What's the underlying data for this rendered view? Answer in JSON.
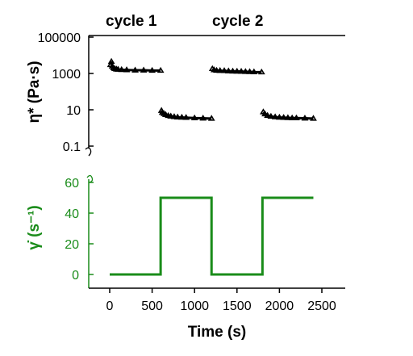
{
  "chart_data": [
    {
      "type": "scatter",
      "annotations": [
        "cycle 1",
        "cycle 2"
      ],
      "ylabel": "η* (Pa·s)",
      "yscale": "log",
      "ylim": [
        0.1,
        100000
      ],
      "yticks": [
        "100000",
        "1000",
        "10",
        "0.1"
      ],
      "grid": false,
      "series": [
        {
          "x": [
            10,
            20,
            30,
            45,
            60,
            80,
            100,
            140,
            200,
            300,
            400,
            500,
            600
          ],
          "y": [
            3000,
            4500,
            2500,
            2000,
            1800,
            1700,
            1650,
            1600,
            1550,
            1500,
            1500,
            1450,
            1450
          ]
        },
        {
          "x": [
            610,
            620,
            640,
            660,
            690,
            720,
            760,
            800,
            850,
            900,
            1000,
            1100,
            1200
          ],
          "y": [
            9,
            7,
            6,
            5.3,
            4.7,
            4.4,
            4.1,
            3.9,
            3.8,
            3.7,
            3.5,
            3.4,
            3.3
          ]
        },
        {
          "x": [
            1210,
            1230,
            1260,
            1300,
            1350,
            1400,
            1450,
            1500,
            1550,
            1600,
            1650,
            1700,
            1790
          ],
          "y": [
            1800,
            1550,
            1450,
            1420,
            1400,
            1350,
            1320,
            1300,
            1280,
            1250,
            1230,
            1200,
            1180
          ]
        },
        {
          "x": [
            1810,
            1830,
            1860,
            1900,
            1950,
            2000,
            2050,
            2100,
            2150,
            2200,
            2300,
            2400
          ],
          "y": [
            7.5,
            5.8,
            4.8,
            4.3,
            4.0,
            3.8,
            3.7,
            3.6,
            3.5,
            3.5,
            3.4,
            3.3
          ]
        }
      ]
    },
    {
      "type": "line",
      "xlabel": "Time (s)",
      "ylabel": "γ̇ (s⁻¹)",
      "xlim": [
        -200,
        2750
      ],
      "ylim": [
        -8,
        60
      ],
      "xticks": [
        0,
        500,
        1000,
        1500,
        2000,
        2500
      ],
      "xticklabels": [
        "0",
        "500",
        "1000",
        "1500",
        "2000",
        "2500"
      ],
      "yticks": [
        0,
        20,
        40,
        60
      ],
      "yticklabels": [
        "0",
        "20",
        "40",
        "60"
      ],
      "color": "#1a8c1a",
      "series": [
        {
          "x": [
            0,
            600,
            600,
            1200,
            1200,
            1800,
            1800,
            2400
          ],
          "y": [
            0,
            0,
            50,
            50,
            0,
            0,
            50,
            50
          ]
        }
      ]
    }
  ]
}
